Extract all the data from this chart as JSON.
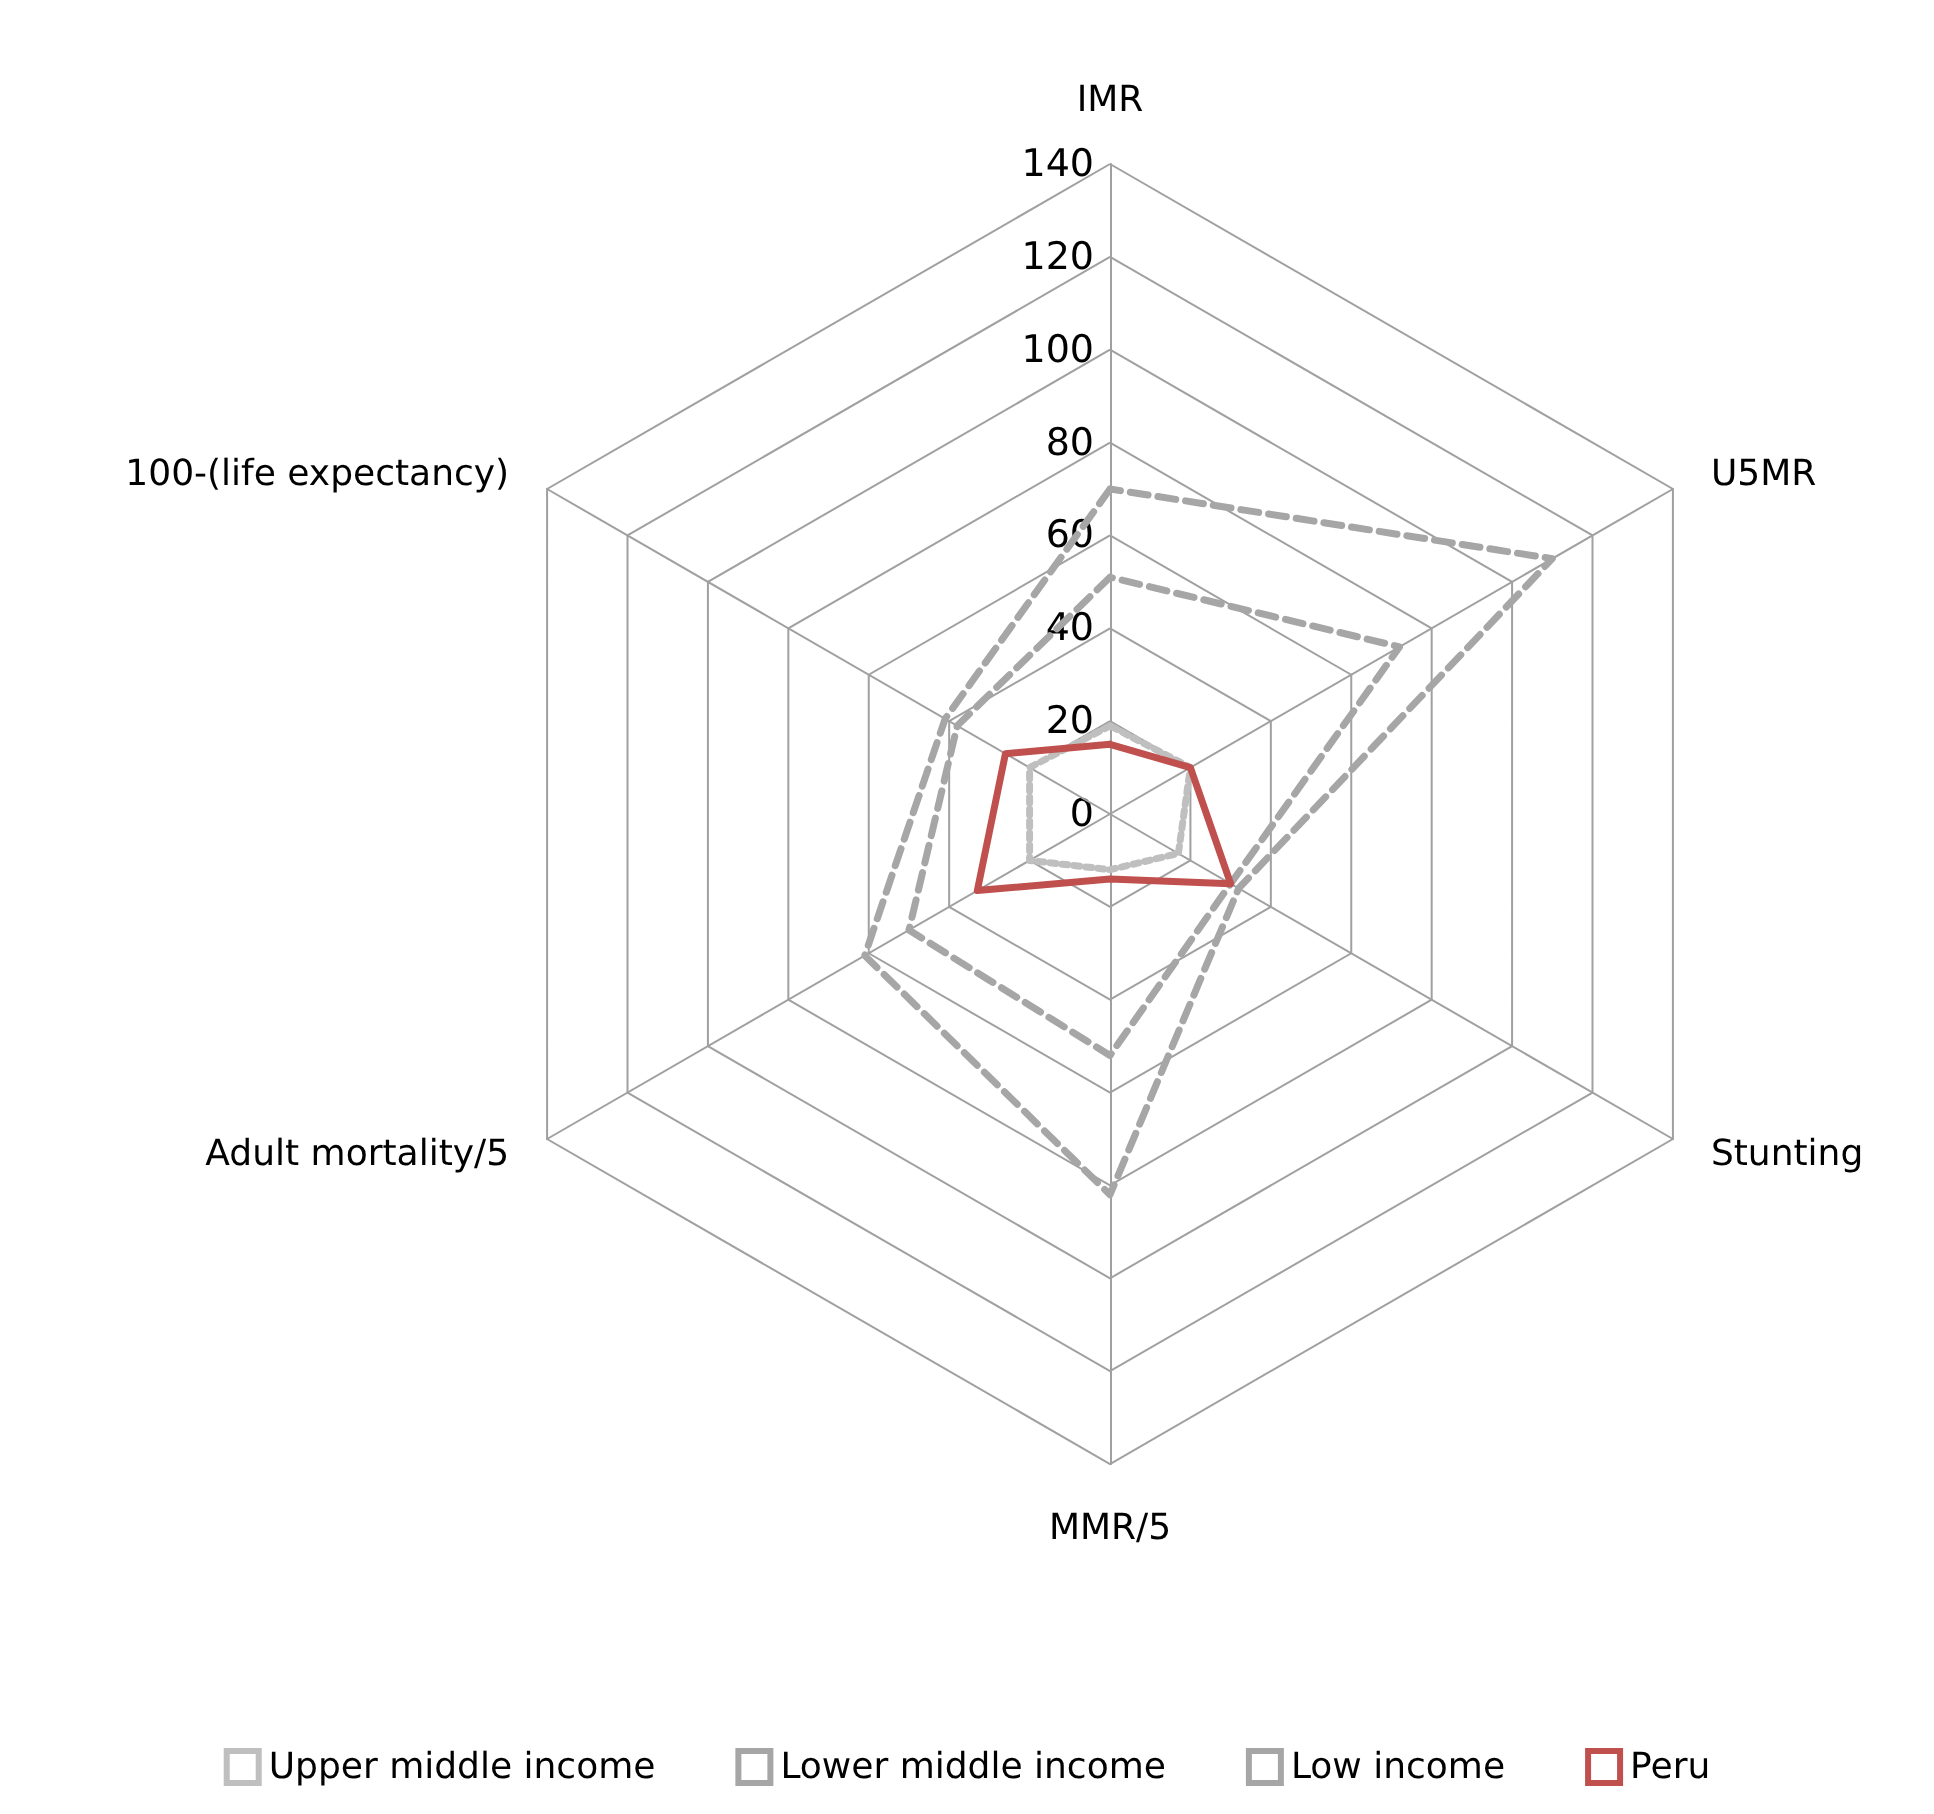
{
  "chart_data": {
    "type": "radar",
    "categories": [
      "IMR",
      "U5MR",
      "Stunting",
      "MMR/5",
      "Adult mortality/5",
      "100-(life expectancy)"
    ],
    "ylim": [
      0,
      140
    ],
    "yticks": [
      0,
      20,
      40,
      60,
      80,
      100,
      120,
      140
    ],
    "grid": true,
    "legend": "bottom",
    "marker": "none",
    "series": [
      {
        "name": "Upper middle income",
        "color": "#bfbfbf",
        "line_style": "dotted",
        "values": [
          19,
          20,
          17,
          12,
          20,
          20
        ]
      },
      {
        "name": "Lower middle income",
        "color": "#a6a6a6",
        "line_style": "dashed",
        "values": [
          51,
          72,
          30,
          52,
          50,
          38
        ]
      },
      {
        "name": "Low income",
        "color": "#a6a6a6",
        "line_style": "dashed",
        "values": [
          70,
          110,
          32,
          82,
          61,
          41
        ]
      },
      {
        "name": "Peru",
        "color": "#c0504d",
        "line_style": "solid",
        "values": [
          15,
          20,
          30,
          14,
          33,
          26
        ]
      }
    ]
  }
}
